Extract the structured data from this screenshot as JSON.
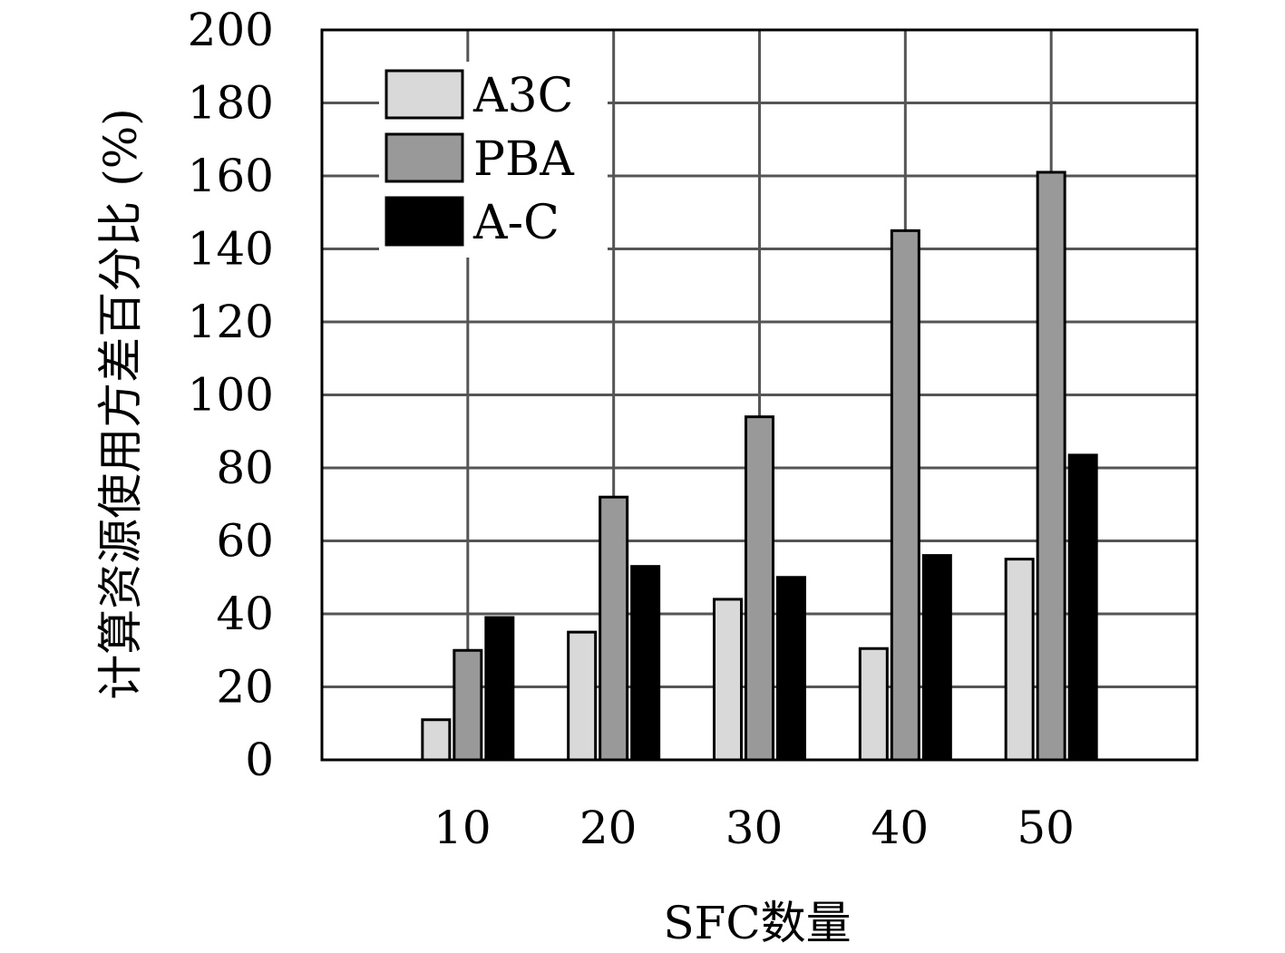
{
  "chart_data": {
    "type": "bar",
    "title": "",
    "xlabel": "SFC数量",
    "ylabel": "计算资源使用方差百分比 (%)",
    "categories": [
      "10",
      "20",
      "30",
      "40",
      "50"
    ],
    "ylim": [
      0,
      200
    ],
    "y_ticks": [
      "0",
      "20",
      "40",
      "60",
      "80",
      "100",
      "120",
      "140",
      "160",
      "180",
      "200"
    ],
    "x_ticks": [
      "10",
      "20",
      "30",
      "40",
      "50"
    ],
    "xlim": [
      0,
      60
    ],
    "grid": true,
    "legend_position": "top-left",
    "series": [
      {
        "name": "A3C",
        "color": "#d9d9d9",
        "values": [
          11,
          35,
          44,
          30.5,
          55
        ]
      },
      {
        "name": "PBA",
        "color": "#999999",
        "values": [
          30,
          72,
          94,
          145,
          161
        ]
      },
      {
        "name": "A-C",
        "color": "#000000",
        "values": [
          39,
          53,
          50,
          56,
          83.5
        ]
      }
    ]
  }
}
